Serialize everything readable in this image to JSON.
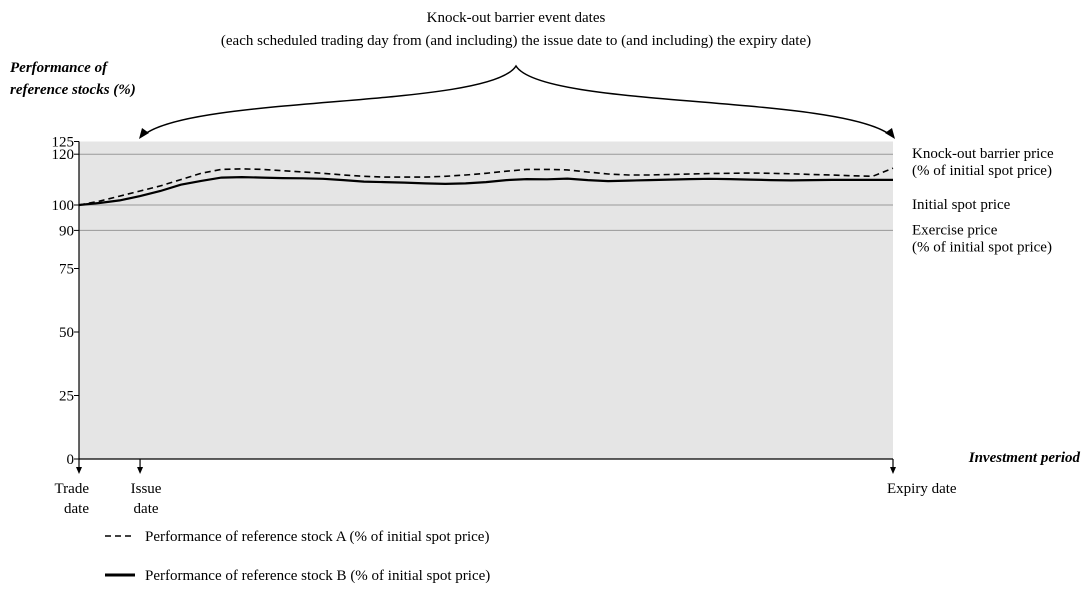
{
  "chart_data": {
    "type": "line",
    "title": "Knock-out barrier event dates",
    "subtitle": "(each scheduled trading day from (and including) the issue date to (and including) the expiry date)",
    "y_label": [
      "Performance of",
      "reference stocks (%)"
    ],
    "x_label": "Investment period",
    "categories": [
      [
        "Trade",
        "date"
      ],
      null,
      null,
      [
        "Issue",
        "date"
      ],
      null,
      null,
      null,
      null,
      null,
      null,
      null,
      null,
      null,
      null,
      null,
      null,
      null,
      null,
      null,
      null,
      null,
      null,
      null,
      null,
      null,
      null,
      null,
      null,
      null,
      null,
      null,
      null,
      null,
      null,
      null,
      null,
      null,
      null,
      null,
      null,
      [
        "Expiry date"
      ]
    ],
    "series": [
      {
        "name": "Performance of reference stock A (% of initial spot price)",
        "color": "#000000",
        "dash": true,
        "values": [
          100,
          101.5,
          103.5,
          105.5,
          107.5,
          110,
          112.5,
          114,
          114.2,
          114,
          113.5,
          113,
          112.5,
          111.8,
          111.3,
          111,
          111,
          111,
          111.3,
          111.8,
          112.5,
          113.3,
          114,
          114,
          113.8,
          113,
          112.2,
          111.8,
          111.8,
          112,
          112.2,
          112.4,
          112.5,
          112.6,
          112.5,
          112.3,
          112,
          111.8,
          111.5,
          111.3,
          114.5
        ]
      },
      {
        "name": "Performance of reference stock B (% of initial spot price)",
        "color": "#000000",
        "dash": false,
        "values": [
          100,
          100.8,
          101.8,
          103.5,
          105.5,
          108,
          109.5,
          110.8,
          111,
          110.8,
          110.6,
          110.5,
          110.3,
          109.8,
          109.2,
          109,
          108.8,
          108.5,
          108.3,
          108.5,
          109,
          109.8,
          110.2,
          110.1,
          110.4,
          109.8,
          109.4,
          109.6,
          109.8,
          110,
          110.2,
          110.3,
          110.2,
          110,
          109.8,
          109.7,
          109.8,
          109.9,
          109.9,
          109.9,
          109.9
        ]
      }
    ],
    "ylim": [
      0,
      125
    ],
    "yticks": [
      0,
      25,
      50,
      75,
      90,
      100,
      120,
      125
    ],
    "reference_lines": [
      {
        "value": 120,
        "label": [
          "Knock-out barrier price",
          "(% of initial spot price)"
        ]
      },
      {
        "value": 100,
        "label": [
          "Initial spot price"
        ]
      },
      {
        "value": 90,
        "label": [
          "Exercise price",
          "(% of initial spot price)"
        ]
      }
    ],
    "plot_background": "#e5e5e5"
  }
}
